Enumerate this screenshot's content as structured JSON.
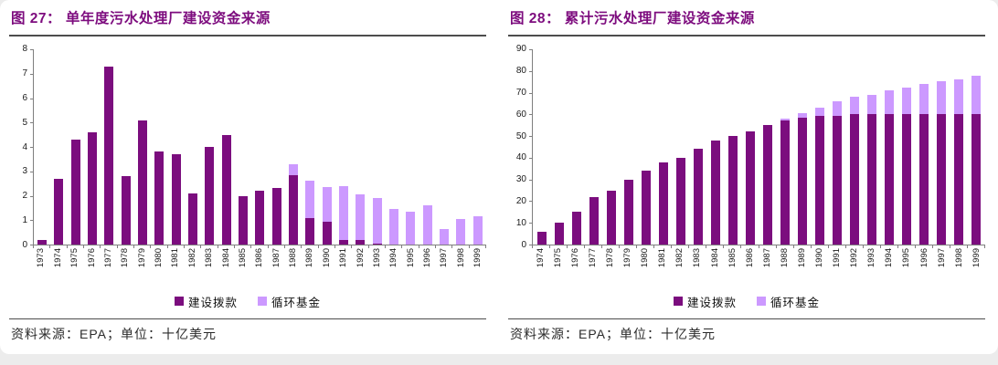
{
  "page": {
    "source_note": "资料来源：EPA；单位：十亿美元"
  },
  "chart_data": [
    {
      "type": "bar",
      "stacked": true,
      "title": "图 27：  单年度污水处理厂建设资金来源",
      "categories": [
        "1973",
        "1974",
        "1975",
        "1976",
        "1977",
        "1978",
        "1979",
        "1980",
        "1981",
        "1982",
        "1983",
        "1984",
        "1985",
        "1986",
        "1987",
        "1988",
        "1989",
        "1990",
        "1991",
        "1992",
        "1993",
        "1994",
        "1995",
        "1996",
        "1997",
        "1998",
        "1999"
      ],
      "series": [
        {
          "name": "建设拨款",
          "color": "#7b0d7e",
          "values": [
            0.2,
            2.7,
            4.3,
            4.6,
            7.3,
            2.8,
            5.1,
            3.8,
            3.7,
            2.1,
            4.0,
            4.5,
            2.0,
            2.2,
            2.3,
            2.85,
            1.1,
            0.95,
            0.2,
            0.2,
            0.05,
            0,
            0,
            0,
            0,
            0,
            0
          ]
        },
        {
          "name": "循环基金",
          "color": "#cc99ff",
          "values": [
            0,
            0,
            0,
            0,
            0,
            0,
            0,
            0,
            0,
            0,
            0,
            0,
            0,
            0,
            0,
            0.45,
            1.5,
            1.4,
            2.2,
            1.85,
            1.85,
            1.45,
            1.35,
            1.6,
            0.65,
            1.05,
            1.15
          ]
        }
      ],
      "xlabel": "",
      "ylabel": "",
      "ylim": [
        0,
        8
      ],
      "ytick_step": 1,
      "grid": false,
      "legend_position": "bottom"
    },
    {
      "type": "bar",
      "stacked": true,
      "title": "图 28：  累计污水处理厂建设资金来源",
      "categories": [
        "1974",
        "1975",
        "1976",
        "1977",
        "1978",
        "1979",
        "1980",
        "1981",
        "1982",
        "1983",
        "1984",
        "1985",
        "1986",
        "1987",
        "1988",
        "1989",
        "1990",
        "1991",
        "1992",
        "1993",
        "1994",
        "1995",
        "1996",
        "1997",
        "1998",
        "1999"
      ],
      "series": [
        {
          "name": "建设拨款",
          "color": "#7b0d7e",
          "values": [
            6,
            10,
            15,
            22,
            25,
            30,
            34,
            38,
            40,
            44,
            48,
            50,
            52,
            55,
            57,
            58.5,
            59.5,
            59.5,
            60,
            60,
            60,
            60,
            60,
            60,
            60,
            60
          ]
        },
        {
          "name": "循环基金",
          "color": "#cc99ff",
          "values": [
            0,
            0,
            0,
            0,
            0,
            0,
            0,
            0,
            0,
            0,
            0,
            0,
            0,
            0,
            1,
            2,
            3.5,
            6.5,
            8,
            9,
            11,
            12.5,
            14,
            15.5,
            16,
            18
          ]
        }
      ],
      "xlabel": "",
      "ylabel": "",
      "ylim": [
        0,
        90
      ],
      "ytick_step": 10,
      "grid": false,
      "legend_position": "bottom"
    }
  ]
}
